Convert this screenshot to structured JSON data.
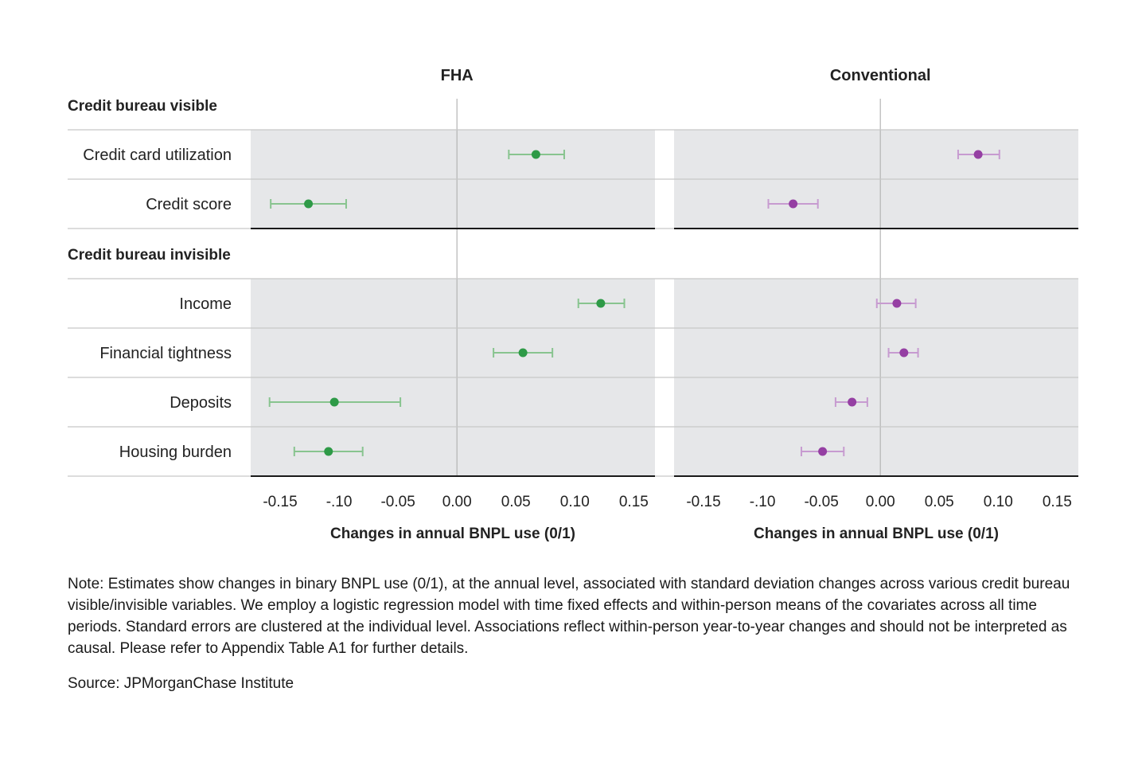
{
  "chart_data": {
    "type": "scatter",
    "panels": [
      "FHA",
      "Conventional"
    ],
    "groups": [
      {
        "label": "Credit bureau visible",
        "rows": [
          "Credit card utilization",
          "Credit score"
        ]
      },
      {
        "label": "Credit bureau invisible",
        "rows": [
          "Income",
          "Financial tightness",
          "Deposits",
          "Housing burden"
        ]
      }
    ],
    "series": [
      {
        "panel": "FHA",
        "color": "#2e9a47",
        "ci_color": "#88c48f",
        "points": [
          {
            "row": "Credit card utilization",
            "estimate": 0.067,
            "lower": 0.044,
            "upper": 0.091
          },
          {
            "row": "Credit score",
            "estimate": -0.126,
            "lower": -0.158,
            "upper": -0.094
          },
          {
            "row": "Income",
            "estimate": 0.122,
            "lower": 0.103,
            "upper": 0.142
          },
          {
            "row": "Financial tightness",
            "estimate": 0.056,
            "lower": 0.031,
            "upper": 0.081
          },
          {
            "row": "Deposits",
            "estimate": -0.104,
            "lower": -0.159,
            "upper": -0.048
          },
          {
            "row": "Housing burden",
            "estimate": -0.109,
            "lower": -0.138,
            "upper": -0.08
          }
        ]
      },
      {
        "panel": "Conventional",
        "color": "#953fa3",
        "ci_color": "#c79bd0",
        "points": [
          {
            "row": "Credit card utilization",
            "estimate": 0.083,
            "lower": 0.066,
            "upper": 0.101
          },
          {
            "row": "Credit score",
            "estimate": -0.074,
            "lower": -0.095,
            "upper": -0.053
          },
          {
            "row": "Income",
            "estimate": 0.014,
            "lower": -0.003,
            "upper": 0.03
          },
          {
            "row": "Financial tightness",
            "estimate": 0.02,
            "lower": 0.007,
            "upper": 0.032
          },
          {
            "row": "Deposits",
            "estimate": -0.024,
            "lower": -0.038,
            "upper": -0.011
          },
          {
            "row": "Housing burden",
            "estimate": -0.049,
            "lower": -0.067,
            "upper": -0.031
          }
        ]
      }
    ],
    "xlim": [
      -0.175,
      0.168
    ],
    "xticks": [
      -0.15,
      -0.1,
      -0.05,
      0,
      0.05,
      0.1,
      0.15
    ],
    "xtick_labels": [
      "-0.15",
      "-.10",
      "-0.05",
      "0.00",
      "0.05",
      "0.10",
      "0.15"
    ],
    "xlabel": "Changes in annual BNPL use (0/1)",
    "grid": false
  },
  "note": "Note: Estimates show changes in binary BNPL use (0/1), at the annual level, associated with standard deviation changes across various credit bureau visible/invisible variables. We employ a logistic regression model with time fixed effects and within-person means of the covariates across all time periods. Standard errors are clustered at the individual level. Associations reflect within-person year-to-year changes and should not be interpreted as causal. Please refer to Appendix Table A1 for further details.",
  "source": "Source: JPMorganChase Institute",
  "colors": {
    "panel_bg": "#e6e7e9",
    "zero_line": "#b4b4b4",
    "divider": "#c8c8c8",
    "frame": "#1a1a1a"
  }
}
